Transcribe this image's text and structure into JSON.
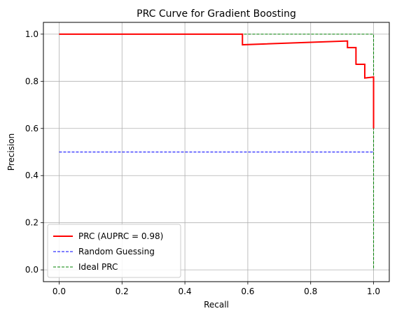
{
  "chart_data": {
    "type": "line",
    "title": "PRC Curve for Gradient Boosting",
    "xlabel": "Recall",
    "ylabel": "Precision",
    "xlim": [
      -0.05,
      1.05
    ],
    "ylim": [
      -0.05,
      1.05
    ],
    "xticks": [
      0.0,
      0.2,
      0.4,
      0.6,
      0.8,
      1.0
    ],
    "yticks": [
      0.0,
      0.2,
      0.4,
      0.6,
      0.8,
      1.0
    ],
    "xtick_labels": [
      "0.0",
      "0.2",
      "0.4",
      "0.6",
      "0.8",
      "1.0"
    ],
    "ytick_labels": [
      "0.0",
      "0.2",
      "0.4",
      "0.6",
      "0.8",
      "1.0"
    ],
    "grid": true,
    "legend_position": "lower-left",
    "series": [
      {
        "name": "PRC (AUPRC = 0.98)",
        "color": "#ff0000",
        "style": "solid",
        "x": [
          0.0,
          0.583,
          0.583,
          0.917,
          0.917,
          0.944,
          0.944,
          0.944,
          0.944,
          0.972,
          0.972,
          1.0,
          1.0,
          1.0
        ],
        "y": [
          1.0,
          1.0,
          0.955,
          0.971,
          0.943,
          0.943,
          0.918,
          0.87,
          0.872,
          0.872,
          0.814,
          0.818,
          0.818,
          0.6
        ]
      },
      {
        "name": "Random Guessing",
        "color": "#0000ff",
        "style": "dashed",
        "x": [
          0.0,
          1.0
        ],
        "y": [
          0.5,
          0.5
        ]
      },
      {
        "name": "Ideal PRC",
        "color": "#008000",
        "style": "dashed",
        "x": [
          0.0,
          1.0,
          1.0
        ],
        "y": [
          1.0,
          1.0,
          0.0
        ]
      }
    ]
  }
}
